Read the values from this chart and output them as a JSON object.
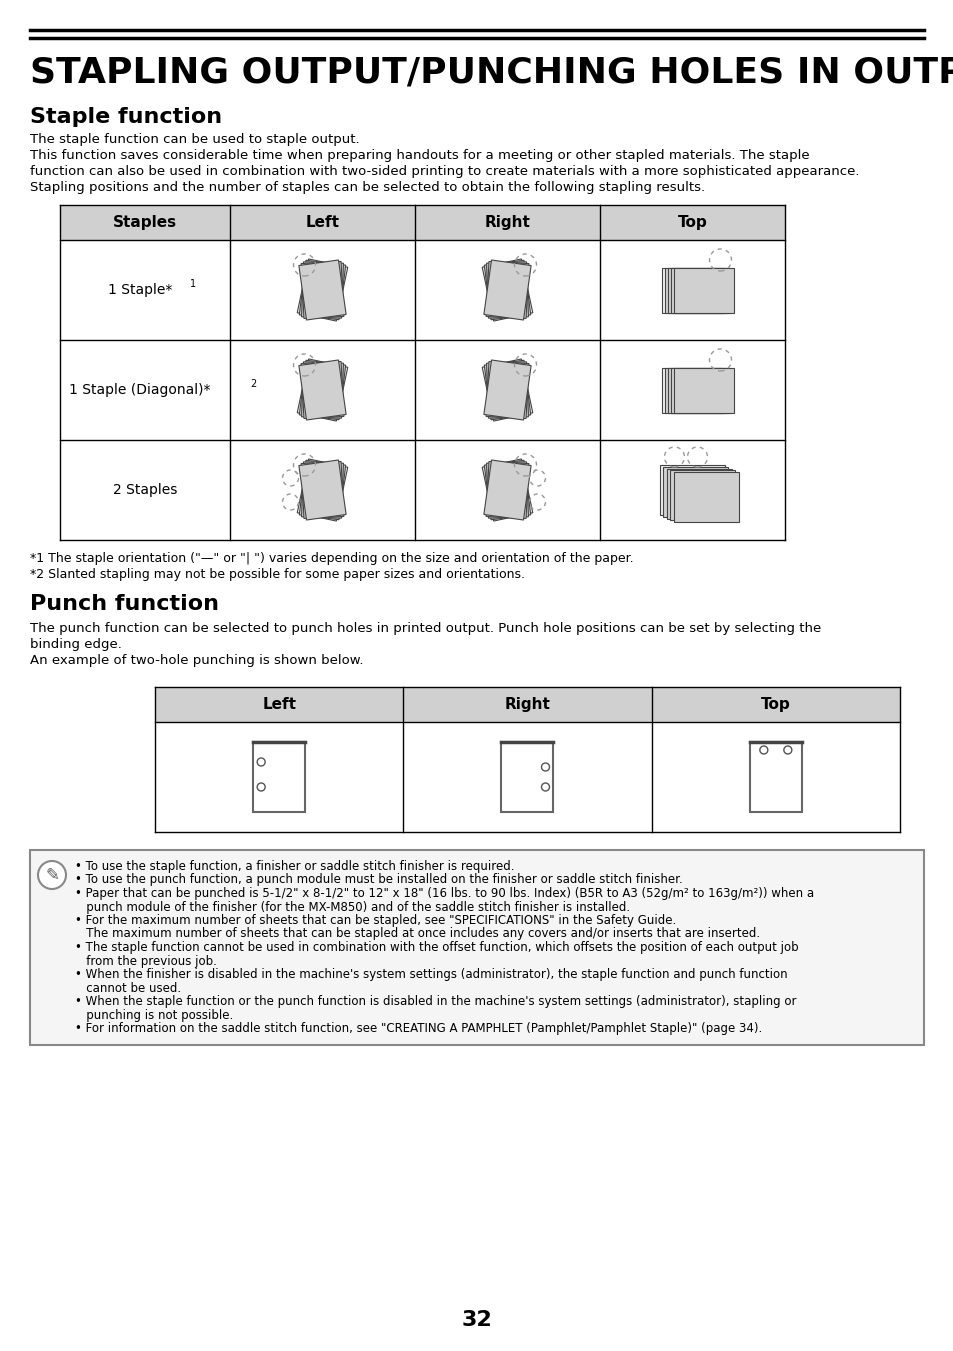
{
  "title": "STAPLING OUTPUT/PUNCHING HOLES IN OUTPUT",
  "section1_title": "Staple function",
  "section1_intro": "The staple function can be used to staple output.\nThis function saves considerable time when preparing handouts for a meeting or other stapled materials. The staple\nfunction can also be used in combination with two-sided printing to create materials with a more sophisticated appearance.\nStalping positions and the number of staples can be selected to obtain the following stapling results.",
  "staple_table_headers": [
    "Staples",
    "Left",
    "Right",
    "Top"
  ],
  "staple_rows": [
    "1 Staple*¹",
    "1 Staple (Diagonal)*²",
    "2 Staples"
  ],
  "footnote1": "*1 The staple orientation (\"—\" or \"| \") varies depending on the size and orientation of the paper.",
  "footnote2": "*2 Slanted stapling may not be possible for some paper sizes and orientations.",
  "section2_title": "Punch function",
  "section2_intro": "The punch function can be selected to punch holes in printed output. Punch hole positions can be set by selecting the\nbinding edge.\nAn example of two-hole punching is shown below.",
  "punch_table_headers": [
    "Left",
    "Right",
    "Top"
  ],
  "page_number": "32",
  "bg_color": "#ffffff",
  "table_header_bg": "#d0d0d0",
  "table_border": "#000000",
  "note_border": "#888888",
  "note_bg": "#f5f5f5",
  "bullet_points": [
    "To use the staple function, a finisher or saddle stitch finisher is required.",
    "To use the punch function, a punch module must be installed on the finisher or saddle stitch finisher.",
    "Paper that can be punched is 5-1/2″ x 8-1/2″ to 12″ x 18″ (16 lbs. to 90 lbs. Index) (B5R to A3 (52g/m² to 163g/m²)) when a\npunch module of the finisher (for the MX-M850) and of the saddle stitch finisher is installed.",
    "For the maximum number of sheets that can be stapled, see “SPECIFICATIONS” in the Safety Guide.\nThe maximum number of sheets that can be stapled at once includes any covers and/or inserts that are inserted.",
    "The staple function cannot be used in combination with the offset function, which offsets the position of each output job\nfrom the previous job.",
    "When the finisher is disabled in the machine’s system settings (administrator), the staple function and punch function\ncannot be used.",
    "When the staple function or the punch function is disabled in the machine’s system settings (administrator), stapling or\npunching is not possible.",
    "For information on the saddle stitch function, see “CREATING A PAMPHLET (Pamphlet/Pamphlet Staple)” (page 34)."
  ]
}
